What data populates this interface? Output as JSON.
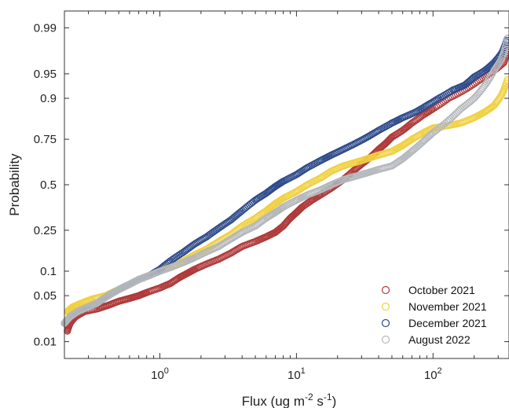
{
  "chart_data": {
    "type": "scatter",
    "title": "",
    "xlabel": {
      "base": "Flux (ug m",
      "sup1": "-2",
      "mid": " s",
      "sup2": "-1",
      "end": ")"
    },
    "ylabel": "Probability",
    "x_scale": "log",
    "y_scale": "normal-probability",
    "xlim": [
      0.2,
      360
    ],
    "ylim": [
      0.005,
      0.995
    ],
    "x_ticks": [
      {
        "value": 1,
        "base": "10",
        "exp": "0"
      },
      {
        "value": 10,
        "base": "10",
        "exp": "1"
      },
      {
        "value": 100,
        "base": "10",
        "exp": "2"
      }
    ],
    "y_ticks": [
      {
        "value": 0.01,
        "label": "0.01"
      },
      {
        "value": 0.05,
        "label": "0.05"
      },
      {
        "value": 0.1,
        "label": "0.1"
      },
      {
        "value": 0.25,
        "label": "0.25"
      },
      {
        "value": 0.5,
        "label": "0.5"
      },
      {
        "value": 0.75,
        "label": "0.75"
      },
      {
        "value": 0.9,
        "label": "0.9"
      },
      {
        "value": 0.95,
        "label": "0.95"
      },
      {
        "value": 0.99,
        "label": "0.99"
      }
    ],
    "legend_position": "bottom-right",
    "marker": "open-circle",
    "series": [
      {
        "name": "October 2021",
        "color": "#b03a3a",
        "points": [
          [
            0.21,
            0.015
          ],
          [
            0.22,
            0.02
          ],
          [
            0.24,
            0.025
          ],
          [
            0.28,
            0.03
          ],
          [
            0.35,
            0.033
          ],
          [
            0.42,
            0.037
          ],
          [
            0.5,
            0.042
          ],
          [
            0.6,
            0.046
          ],
          [
            0.7,
            0.05
          ],
          [
            0.8,
            0.055
          ],
          [
            1.0,
            0.063
          ],
          [
            1.2,
            0.072
          ],
          [
            1.4,
            0.085
          ],
          [
            1.6,
            0.095
          ],
          [
            1.8,
            0.105
          ],
          [
            2.2,
            0.12
          ],
          [
            2.7,
            0.135
          ],
          [
            3.3,
            0.155
          ],
          [
            4.0,
            0.18
          ],
          [
            5.0,
            0.2
          ],
          [
            6.0,
            0.22
          ],
          [
            7.0,
            0.24
          ],
          [
            8.0,
            0.27
          ],
          [
            9.0,
            0.31
          ],
          [
            10.0,
            0.34
          ],
          [
            11.0,
            0.37
          ],
          [
            13.0,
            0.41
          ],
          [
            15.0,
            0.44
          ],
          [
            18.0,
            0.48
          ],
          [
            22.0,
            0.53
          ],
          [
            26.0,
            0.58
          ],
          [
            30.0,
            0.62
          ],
          [
            35.0,
            0.66
          ],
          [
            40.0,
            0.7
          ],
          [
            45.0,
            0.73
          ],
          [
            50.0,
            0.76
          ],
          [
            60.0,
            0.79
          ],
          [
            70.0,
            0.82
          ],
          [
            85.0,
            0.85
          ],
          [
            100.0,
            0.87
          ],
          [
            130.0,
            0.9
          ],
          [
            170.0,
            0.92
          ],
          [
            220.0,
            0.94
          ],
          [
            280.0,
            0.955
          ],
          [
            330.0,
            0.965
          ],
          [
            355.0,
            0.98
          ]
        ]
      },
      {
        "name": "November 2021",
        "color": "#f0d040",
        "points": [
          [
            0.21,
            0.03
          ],
          [
            0.23,
            0.035
          ],
          [
            0.27,
            0.04
          ],
          [
            0.32,
            0.045
          ],
          [
            0.4,
            0.05
          ],
          [
            0.5,
            0.06
          ],
          [
            0.6,
            0.07
          ],
          [
            0.7,
            0.08
          ],
          [
            0.85,
            0.09
          ],
          [
            1.0,
            0.1
          ],
          [
            1.2,
            0.115
          ],
          [
            1.5,
            0.13
          ],
          [
            1.8,
            0.15
          ],
          [
            2.2,
            0.17
          ],
          [
            2.7,
            0.2
          ],
          [
            3.3,
            0.23
          ],
          [
            4.0,
            0.27
          ],
          [
            5.0,
            0.31
          ],
          [
            6.0,
            0.35
          ],
          [
            7.0,
            0.39
          ],
          [
            8.0,
            0.42
          ],
          [
            10.0,
            0.46
          ],
          [
            12.0,
            0.5
          ],
          [
            15.0,
            0.54
          ],
          [
            18.0,
            0.58
          ],
          [
            22.0,
            0.61
          ],
          [
            27.0,
            0.63
          ],
          [
            33.0,
            0.65
          ],
          [
            40.0,
            0.67
          ],
          [
            50.0,
            0.69
          ],
          [
            60.0,
            0.72
          ],
          [
            70.0,
            0.75
          ],
          [
            85.0,
            0.78
          ],
          [
            100.0,
            0.8
          ],
          [
            130.0,
            0.81
          ],
          [
            160.0,
            0.82
          ],
          [
            200.0,
            0.84
          ],
          [
            240.0,
            0.86
          ],
          [
            280.0,
            0.88
          ],
          [
            320.0,
            0.91
          ],
          [
            350.0,
            0.94
          ]
        ]
      },
      {
        "name": "December 2021",
        "color": "#2e4a8a",
        "points": [
          [
            0.2,
            0.02
          ],
          [
            0.22,
            0.025
          ],
          [
            0.25,
            0.03
          ],
          [
            0.3,
            0.035
          ],
          [
            0.35,
            0.04
          ],
          [
            0.42,
            0.05
          ],
          [
            0.5,
            0.06
          ],
          [
            0.6,
            0.07
          ],
          [
            0.7,
            0.08
          ],
          [
            0.85,
            0.09
          ],
          [
            1.0,
            0.105
          ],
          [
            1.2,
            0.13
          ],
          [
            1.5,
            0.16
          ],
          [
            1.8,
            0.19
          ],
          [
            2.2,
            0.22
          ],
          [
            2.7,
            0.26
          ],
          [
            3.3,
            0.3
          ],
          [
            4.0,
            0.35
          ],
          [
            5.0,
            0.41
          ],
          [
            6.0,
            0.45
          ],
          [
            7.0,
            0.49
          ],
          [
            8.0,
            0.52
          ],
          [
            10.0,
            0.56
          ],
          [
            12.0,
            0.6
          ],
          [
            15.0,
            0.64
          ],
          [
            18.0,
            0.67
          ],
          [
            22.0,
            0.7
          ],
          [
            27.0,
            0.73
          ],
          [
            33.0,
            0.76
          ],
          [
            40.0,
            0.79
          ],
          [
            50.0,
            0.82
          ],
          [
            60.0,
            0.84
          ],
          [
            75.0,
            0.86
          ],
          [
            90.0,
            0.88
          ],
          [
            110.0,
            0.9
          ],
          [
            140.0,
            0.92
          ],
          [
            170.0,
            0.93
          ],
          [
            200.0,
            0.945
          ],
          [
            240.0,
            0.955
          ],
          [
            280.0,
            0.965
          ],
          [
            320.0,
            0.975
          ],
          [
            350.0,
            0.985
          ]
        ]
      },
      {
        "name": "August 2022",
        "color": "#b4b8bc",
        "points": [
          [
            0.2,
            0.02
          ],
          [
            0.22,
            0.025
          ],
          [
            0.25,
            0.03
          ],
          [
            0.3,
            0.035
          ],
          [
            0.35,
            0.04
          ],
          [
            0.42,
            0.05
          ],
          [
            0.5,
            0.06
          ],
          [
            0.6,
            0.07
          ],
          [
            0.7,
            0.08
          ],
          [
            0.85,
            0.09
          ],
          [
            1.0,
            0.1
          ],
          [
            1.2,
            0.11
          ],
          [
            1.5,
            0.125
          ],
          [
            1.8,
            0.14
          ],
          [
            2.2,
            0.16
          ],
          [
            2.7,
            0.18
          ],
          [
            3.3,
            0.21
          ],
          [
            4.0,
            0.24
          ],
          [
            5.0,
            0.27
          ],
          [
            6.0,
            0.31
          ],
          [
            7.0,
            0.34
          ],
          [
            8.0,
            0.37
          ],
          [
            10.0,
            0.41
          ],
          [
            12.0,
            0.44
          ],
          [
            15.0,
            0.47
          ],
          [
            18.0,
            0.5
          ],
          [
            22.0,
            0.53
          ],
          [
            27.0,
            0.55
          ],
          [
            33.0,
            0.57
          ],
          [
            40.0,
            0.59
          ],
          [
            50.0,
            0.61
          ],
          [
            60.0,
            0.65
          ],
          [
            70.0,
            0.69
          ],
          [
            85.0,
            0.74
          ],
          [
            100.0,
            0.78
          ],
          [
            130.0,
            0.83
          ],
          [
            160.0,
            0.87
          ],
          [
            200.0,
            0.9
          ],
          [
            240.0,
            0.93
          ],
          [
            280.0,
            0.955
          ],
          [
            320.0,
            0.97
          ],
          [
            350.0,
            0.985
          ]
        ]
      }
    ]
  }
}
